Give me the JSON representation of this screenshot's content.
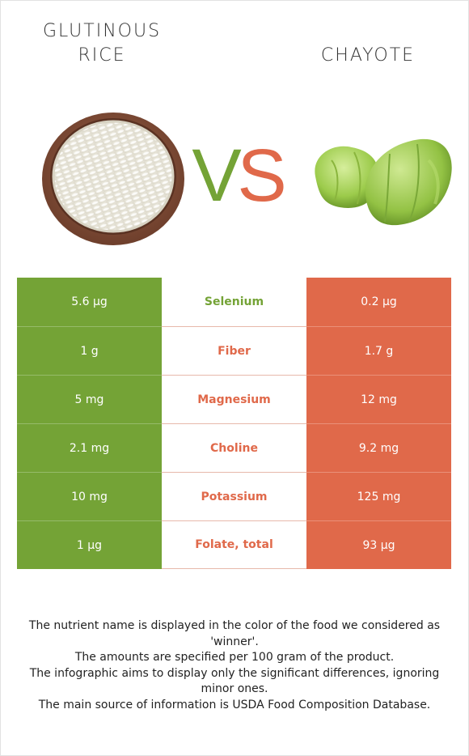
{
  "foods": {
    "left": {
      "title_line1": "GLUTINOUS",
      "title_line2": "RICE",
      "color": "#74a336",
      "image_icon": "rice-bowl-image"
    },
    "right": {
      "title": "CHAYOTE",
      "color": "#e0694a",
      "image_icon": "chayote-image"
    }
  },
  "vs": {
    "v": "V",
    "s": "S"
  },
  "rows": [
    {
      "left": "5.6 µg",
      "nutrient": "Selenium",
      "right": "0.2 µg",
      "winner": "left"
    },
    {
      "left": "1 g",
      "nutrient": "Fiber",
      "right": "1.7 g",
      "winner": "right"
    },
    {
      "left": "5 mg",
      "nutrient": "Magnesium",
      "right": "12 mg",
      "winner": "right"
    },
    {
      "left": "2.1 mg",
      "nutrient": "Choline",
      "right": "9.2 mg",
      "winner": "right"
    },
    {
      "left": "10 mg",
      "nutrient": "Potassium",
      "right": "125 mg",
      "winner": "right"
    },
    {
      "left": "1 µg",
      "nutrient": "Folate, total",
      "right": "93 µg",
      "winner": "right"
    }
  ],
  "footer": {
    "line1": "The nutrient name is displayed in the color of the food we considered as 'winner'.",
    "line2": "The amounts are specified per 100 gram of the product.",
    "line3": "The infographic aims to display only the significant differences, ignoring minor ones.",
    "line4": "The main source of information is USDA Food Composition Database."
  }
}
